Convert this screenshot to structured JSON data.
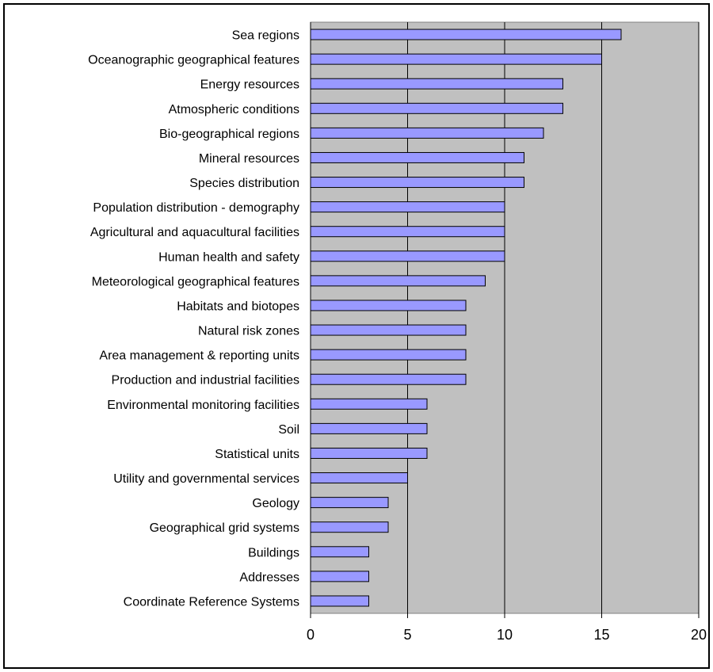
{
  "chart_data": {
    "type": "bar",
    "orientation": "horizontal",
    "title": "",
    "xlabel": "",
    "ylabel": "",
    "categories": [
      "Sea regions",
      "Oceanographic geographical features",
      "Energy resources",
      "Atmospheric conditions",
      "Bio-geographical regions",
      "Mineral resources",
      "Species distribution",
      "Population distribution - demography",
      "Agricultural and aquacultural facilities",
      "Human health and safety",
      "Meteorological geographical features",
      "Habitats and biotopes",
      "Natural risk zones",
      "Area management & reporting units",
      "Production and industrial facilities",
      "Environmental monitoring facilities",
      "Soil",
      "Statistical units",
      "Utility and governmental services",
      "Geology",
      "Geographical grid systems",
      "Buildings",
      "Addresses",
      "Coordinate Reference Systems"
    ],
    "values": [
      16,
      15,
      13,
      13,
      12,
      11,
      11,
      10,
      10,
      10,
      9,
      8,
      8,
      8,
      8,
      6,
      6,
      6,
      5,
      4,
      4,
      3,
      3,
      3
    ],
    "xlim": [
      0,
      20
    ],
    "xticks": [
      0,
      5,
      10,
      15,
      20
    ],
    "grid": "vertical",
    "legend": "none",
    "colors": {
      "bar_fill": "#9999ff",
      "bar_stroke": "#000000",
      "plot_background": "#c0c0c0",
      "gridline": "#000000"
    }
  }
}
